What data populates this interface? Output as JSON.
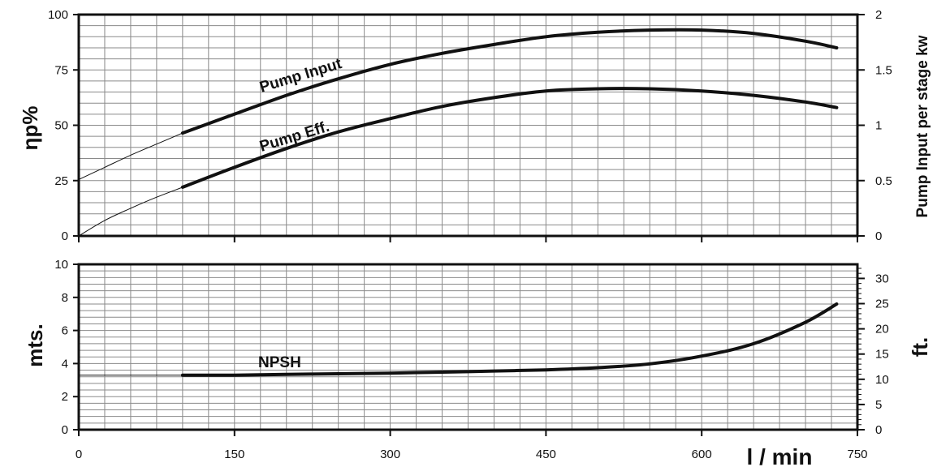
{
  "chart_data": [
    {
      "type": "line",
      "panel": "top",
      "ylabel": "ηp%",
      "y2label": "Pump Input per stage kw",
      "xlim": [
        0,
        750
      ],
      "ylim": [
        0,
        100
      ],
      "y2lim": [
        0,
        2
      ],
      "x_ticks": [
        "0",
        "150",
        "300",
        "450",
        "600",
        "750"
      ],
      "y_ticks": [
        "0",
        "25",
        "50",
        "75",
        "100"
      ],
      "y2_ticks": [
        "0",
        "0.5",
        "1",
        "1.5",
        "2"
      ],
      "grid": true,
      "series": [
        {
          "name": "Pump Input",
          "axis": "right",
          "color": "#111111",
          "x": [
            100,
            150,
            200,
            250,
            300,
            350,
            400,
            450,
            500,
            550,
            600,
            650,
            700,
            730
          ],
          "y": [
            0.93,
            1.1,
            1.27,
            1.42,
            1.55,
            1.65,
            1.73,
            1.8,
            1.84,
            1.86,
            1.86,
            1.83,
            1.76,
            1.7
          ]
        },
        {
          "name": "Pump Eff.",
          "axis": "left",
          "color": "#111111",
          "x": [
            100,
            150,
            200,
            250,
            300,
            350,
            400,
            450,
            500,
            550,
            600,
            650,
            700,
            730
          ],
          "y": [
            22,
            31,
            39.5,
            47,
            53,
            58.5,
            62.5,
            65.5,
            66.5,
            66.5,
            65.5,
            63.5,
            60.5,
            58
          ]
        },
        {
          "name": "",
          "axis": "left",
          "style": "thin",
          "color": "#111111",
          "x": [
            0,
            25,
            50,
            75,
            100
          ],
          "y": [
            25.5,
            31,
            36.5,
            41.5,
            46.5
          ]
        },
        {
          "name": "",
          "axis": "left",
          "style": "thin",
          "color": "#111111",
          "x": [
            0,
            25,
            50,
            75,
            100
          ],
          "y": [
            0,
            7,
            12.5,
            17.5,
            22
          ]
        }
      ],
      "annotations": [
        "Pump Input",
        "Pump Eff."
      ]
    },
    {
      "type": "line",
      "panel": "bottom",
      "xlabel": "l / min",
      "ylabel": "mts.",
      "y2label": "ft.",
      "xlim": [
        0,
        750
      ],
      "ylim": [
        0,
        10
      ],
      "y2lim": [
        0,
        32.8
      ],
      "x_ticks": [
        "0",
        "150",
        "300",
        "450",
        "600",
        "750"
      ],
      "y_ticks": [
        "0",
        "2",
        "4",
        "6",
        "8",
        "10"
      ],
      "y2_ticks": [
        "0",
        "5",
        "10",
        "15",
        "20",
        "25",
        "30"
      ],
      "grid": true,
      "series": [
        {
          "name": "NPSH",
          "axis": "left",
          "color": "#111111",
          "x": [
            100,
            150,
            200,
            250,
            300,
            350,
            400,
            450,
            500,
            550,
            600,
            650,
            700,
            730
          ],
          "y": [
            3.3,
            3.3,
            3.35,
            3.38,
            3.42,
            3.48,
            3.55,
            3.62,
            3.75,
            3.98,
            4.45,
            5.2,
            6.5,
            7.6
          ]
        },
        {
          "name": "",
          "axis": "left",
          "style": "thin",
          "color": "#111111",
          "x": [
            0,
            100
          ],
          "y": [
            3.3,
            3.3
          ]
        }
      ],
      "annotations": [
        "NPSH"
      ]
    }
  ]
}
